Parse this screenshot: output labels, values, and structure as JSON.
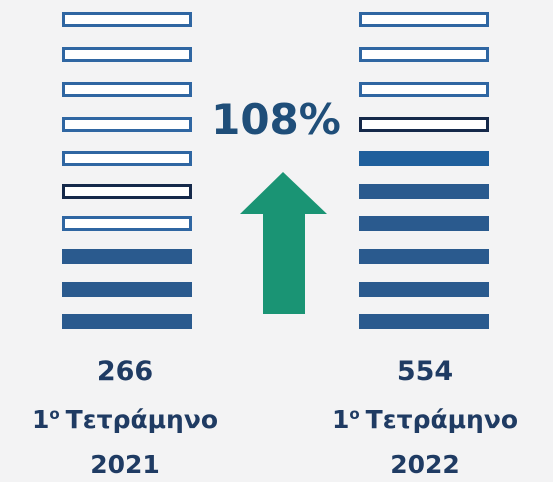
{
  "change": "108%",
  "columns": [
    {
      "value": "266",
      "period": {
        "number": "1",
        "suffix": "ο",
        "name": "Τετράμηνο"
      },
      "year": "2021"
    },
    {
      "value": "554",
      "period": {
        "number": "1",
        "suffix": "ο",
        "name": "Τετράμηνο"
      },
      "year": "2022"
    }
  ]
}
